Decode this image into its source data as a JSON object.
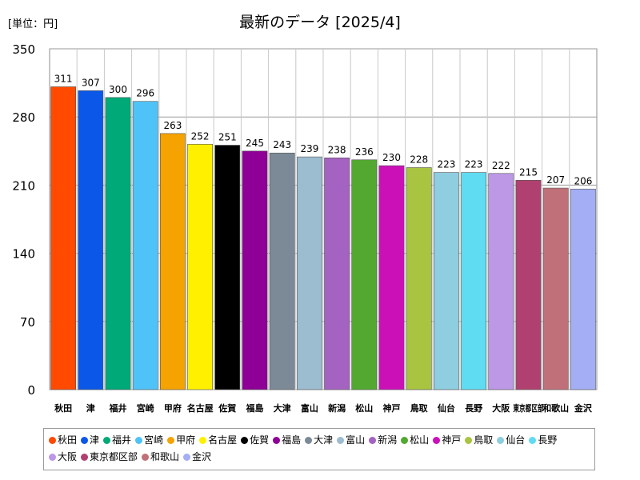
{
  "chart_data": {
    "type": "bar",
    "title": "最新のデータ [2025/4]",
    "unit_label": "[単位：円]",
    "xlabel": "",
    "ylabel": "",
    "ylim": [
      0,
      350
    ],
    "yticks": [
      0,
      70,
      140,
      210,
      280,
      350
    ],
    "grid": true,
    "legend_position": "bottom",
    "categories": [
      "秋田",
      "津",
      "福井",
      "宮崎",
      "甲府",
      "名古屋",
      "佐賀",
      "福島",
      "大津",
      "富山",
      "新潟",
      "松山",
      "神戸",
      "鳥取",
      "仙台",
      "長野",
      "大阪",
      "東京都区部",
      "和歌山",
      "金沢"
    ],
    "values": [
      311,
      307,
      300,
      296,
      263,
      252,
      251,
      245,
      243,
      239,
      238,
      236,
      230,
      228,
      223,
      223,
      222,
      215,
      207,
      206
    ],
    "colors": [
      "#ff4a00",
      "#0b57e8",
      "#00aa78",
      "#4fc3f7",
      "#f5a300",
      "#fff000",
      "#000000",
      "#8e0096",
      "#7b8a96",
      "#9cbcd0",
      "#a463c0",
      "#52a830",
      "#cc10b8",
      "#a8c440",
      "#8fcde0",
      "#60dcf2",
      "#bc98e6",
      "#b04070",
      "#c07078",
      "#a4aef5"
    ]
  }
}
